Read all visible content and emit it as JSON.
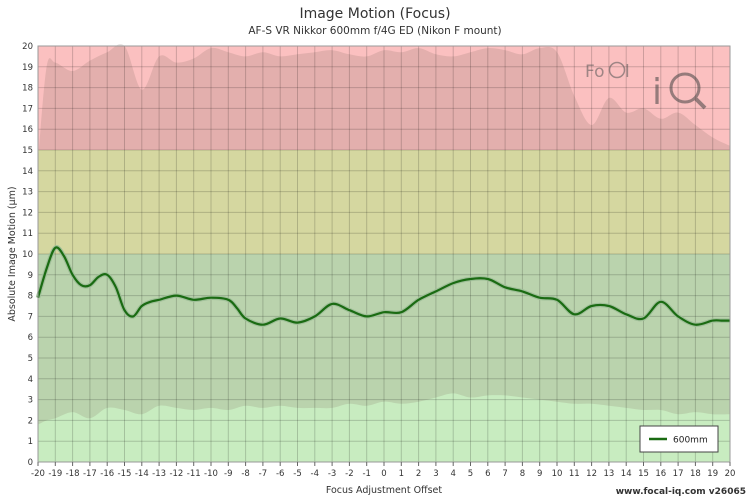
{
  "chart_data": {
    "type": "line",
    "title": "Image Motion (Focus)",
    "subtitle": "AF-S VR Nikkor 600mm f/4G ED (Nikon F mount)",
    "xlabel": "Focus Adjustment Offset",
    "ylabel": "Absolute Image Motion (µm)",
    "xlim": [
      -20,
      20
    ],
    "ylim": [
      0,
      20
    ],
    "x_ticks": [
      -20,
      -19,
      -18,
      -17,
      -16,
      -15,
      -14,
      -13,
      -12,
      -11,
      -10,
      -9,
      -8,
      -7,
      -6,
      -5,
      -4,
      -3,
      -2,
      -1,
      0,
      1,
      2,
      3,
      4,
      5,
      6,
      7,
      8,
      9,
      10,
      11,
      12,
      13,
      14,
      15,
      16,
      17,
      18,
      19,
      20
    ],
    "y_ticks": [
      0,
      1,
      2,
      3,
      4,
      5,
      6,
      7,
      8,
      9,
      10,
      11,
      12,
      13,
      14,
      15,
      16,
      17,
      18,
      19,
      20
    ],
    "grid": true,
    "zones": [
      {
        "from": 0,
        "to": 10,
        "color": "#c8ecc0"
      },
      {
        "from": 10,
        "to": 15,
        "color": "#eaf1b0"
      },
      {
        "from": 15,
        "to": 20,
        "color": "#fbc0c0"
      }
    ],
    "band": {
      "x": [
        -20,
        -19.5,
        -19,
        -18,
        -17,
        -16,
        -15,
        -14,
        -13,
        -12,
        -11,
        -10,
        -9,
        -8,
        -7,
        -6,
        -5,
        -4,
        -3,
        -2,
        -1,
        0,
        1,
        2,
        3,
        4,
        5,
        6,
        7,
        8,
        9,
        10,
        11,
        12,
        13,
        14,
        15,
        16,
        17,
        18,
        19,
        20
      ],
      "upper": [
        14.5,
        19.0,
        19.2,
        18.8,
        19.3,
        19.7,
        20.0,
        17.9,
        19.5,
        19.2,
        19.4,
        19.9,
        19.7,
        19.5,
        19.7,
        19.5,
        19.6,
        19.7,
        19.8,
        19.6,
        19.5,
        19.8,
        19.7,
        19.9,
        19.6,
        19.5,
        19.7,
        19.9,
        19.8,
        19.6,
        19.9,
        19.7,
        17.6,
        16.2,
        17.5,
        16.8,
        17.0,
        16.5,
        16.8,
        16.2,
        15.6,
        15.2
      ],
      "lower": [
        1.8,
        2.0,
        2.1,
        2.4,
        2.1,
        2.6,
        2.5,
        2.3,
        2.7,
        2.6,
        2.5,
        2.6,
        2.5,
        2.7,
        2.6,
        2.7,
        2.6,
        2.6,
        2.6,
        2.8,
        2.7,
        2.9,
        2.8,
        2.9,
        3.1,
        3.3,
        3.1,
        3.2,
        3.2,
        3.1,
        3.0,
        2.9,
        2.8,
        2.8,
        2.7,
        2.6,
        2.5,
        2.5,
        2.3,
        2.4,
        2.3,
        2.3
      ],
      "color": "rgba(120,100,90,0.18)"
    },
    "series": [
      {
        "name": "600mm",
        "color": "#1a6b12",
        "x": [
          -20,
          -19.5,
          -19,
          -18.5,
          -18,
          -17.5,
          -17,
          -16.5,
          -16,
          -15.5,
          -15,
          -14.5,
          -14,
          -13.5,
          -13,
          -12,
          -11,
          -10,
          -9,
          -8.5,
          -8,
          -7,
          -6,
          -5,
          -4,
          -3,
          -2,
          -1,
          0,
          1,
          2,
          3,
          4,
          5,
          6,
          7,
          8,
          9,
          10,
          11,
          12,
          13,
          14,
          15,
          16,
          17,
          18,
          19,
          19.5,
          20
        ],
        "y": [
          7.9,
          9.3,
          10.3,
          9.9,
          9.0,
          8.5,
          8.5,
          8.9,
          9.0,
          8.4,
          7.3,
          7.0,
          7.5,
          7.7,
          7.8,
          8.0,
          7.8,
          7.9,
          7.8,
          7.4,
          6.9,
          6.6,
          6.9,
          6.7,
          7.0,
          7.6,
          7.3,
          7.0,
          7.2,
          7.2,
          7.8,
          8.2,
          8.6,
          8.8,
          8.8,
          8.4,
          8.2,
          7.9,
          7.8,
          7.1,
          7.5,
          7.5,
          7.1,
          6.9,
          7.7,
          7.0,
          6.6,
          6.8,
          6.8,
          6.8
        ]
      }
    ],
    "legend": {
      "position": "bottom-right",
      "label": "600mm"
    }
  },
  "watermark": "www.focal-iq.com  v26065"
}
